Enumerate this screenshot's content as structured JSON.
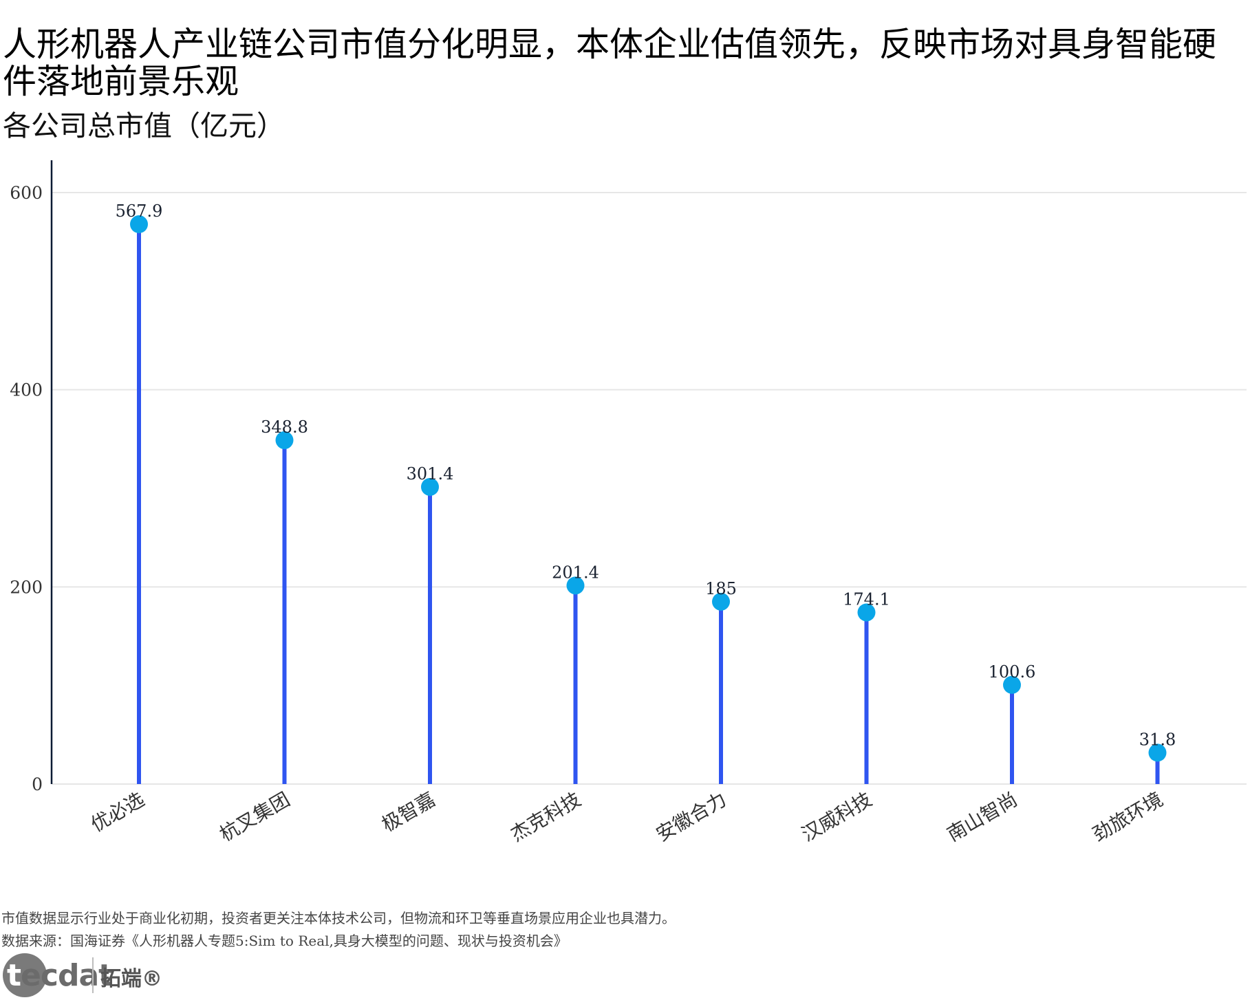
{
  "header": {
    "title": "人形机器人产业链公司市值分化明显，本体企业估值领先，反映市场对具身智能硬件落地前景乐观",
    "subtitle": "各公司总市值（亿元）"
  },
  "chart_data": {
    "type": "lollipop",
    "categories": [
      "优必选",
      "杭叉集团",
      "极智嘉",
      "杰克科技",
      "安徽合力",
      "汉威科技",
      "南山智尚",
      "劲旅环境"
    ],
    "values": [
      567.9,
      348.8,
      301.4,
      201.4,
      185,
      174.1,
      100.6,
      31.8
    ],
    "value_labels": [
      "567.9",
      "348.8",
      "301.4",
      "201.4",
      "185",
      "174.1",
      "100.6",
      "31.8"
    ],
    "ylim": [
      0,
      630
    ],
    "yticks": [
      0,
      200,
      400,
      600
    ],
    "grid": true,
    "colors": {
      "stem": "#2f55f0",
      "dot": "#0aa6e8",
      "grid": "#e6e6e6",
      "axis": "#0b1a33"
    }
  },
  "footer": {
    "note": "市值数据显示行业处于商业化初期，投资者更关注本体技术公司，但物流和环卫等垂直场景应用企业也具潜力。",
    "source": "数据来源：国海证券《人形机器人专题5:Sim to Real,具身大模型的问题、现状与投资机会》"
  },
  "logo": {
    "word_first": "t",
    "word_rest": "ecdat",
    "cn": "拓端®"
  }
}
